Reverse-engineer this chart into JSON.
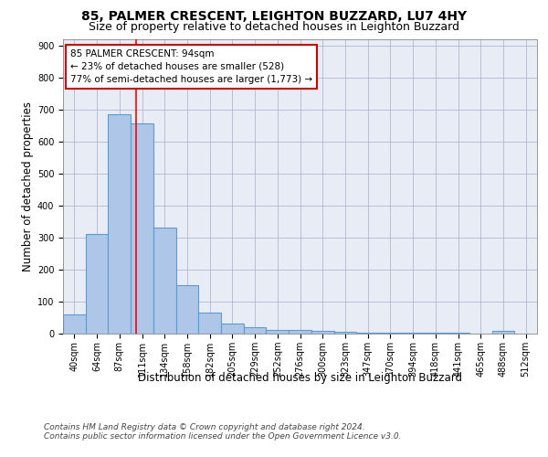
{
  "title_line1": "85, PALMER CRESCENT, LEIGHTON BUZZARD, LU7 4HY",
  "title_line2": "Size of property relative to detached houses in Leighton Buzzard",
  "xlabel": "Distribution of detached houses by size in Leighton Buzzard",
  "ylabel": "Number of detached properties",
  "bin_labels": [
    "40sqm",
    "64sqm",
    "87sqm",
    "111sqm",
    "134sqm",
    "158sqm",
    "182sqm",
    "205sqm",
    "229sqm",
    "252sqm",
    "276sqm",
    "300sqm",
    "323sqm",
    "347sqm",
    "370sqm",
    "394sqm",
    "418sqm",
    "441sqm",
    "465sqm",
    "488sqm",
    "512sqm"
  ],
  "bar_values": [
    60,
    310,
    685,
    655,
    330,
    150,
    65,
    30,
    20,
    10,
    10,
    8,
    5,
    3,
    3,
    2,
    2,
    2,
    0,
    8,
    0
  ],
  "bar_color": "#aec6e8",
  "bar_edge_color": "#5b9bd5",
  "bar_edge_width": 0.8,
  "grid_color": "#b0b8d0",
  "background_color": "#e8edf5",
  "red_line_x": 2.72,
  "annotation_text": "85 PALMER CRESCENT: 94sqm\n← 23% of detached houses are smaller (528)\n77% of semi-detached houses are larger (1,773) →",
  "annotation_box_color": "#ffffff",
  "annotation_box_edge_color": "#cc0000",
  "ylim": [
    0,
    920
  ],
  "yticks": [
    0,
    100,
    200,
    300,
    400,
    500,
    600,
    700,
    800,
    900
  ],
  "footer_line1": "Contains HM Land Registry data © Crown copyright and database right 2024.",
  "footer_line2": "Contains public sector information licensed under the Open Government Licence v3.0.",
  "title_fontsize": 10,
  "subtitle_fontsize": 9,
  "axis_label_fontsize": 8.5,
  "tick_fontsize": 7,
  "annotation_fontsize": 7.5,
  "footer_fontsize": 6.5
}
